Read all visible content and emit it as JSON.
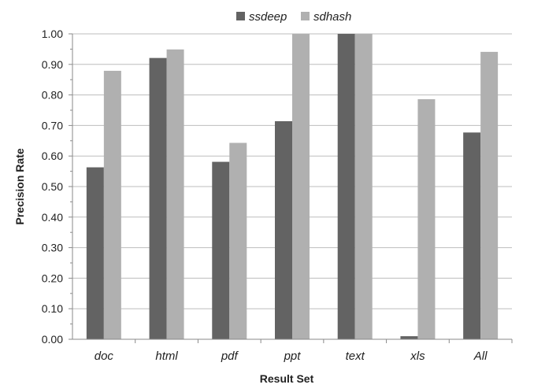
{
  "chart_data": {
    "type": "bar",
    "categories": [
      "doc",
      "html",
      "pdf",
      "ppt",
      "text",
      "xls",
      "All"
    ],
    "series": [
      {
        "name": "ssdeep",
        "values": [
          0.563,
          0.921,
          0.581,
          0.714,
          1.0,
          0.01,
          0.677
        ],
        "color": "#636363"
      },
      {
        "name": "sdhash",
        "values": [
          0.879,
          0.949,
          0.643,
          1.0,
          1.0,
          0.786,
          0.941
        ],
        "color": "#b0b0b0"
      }
    ],
    "xlabel": "Result Set",
    "ylabel": "Precision Rate",
    "ylim": [
      0,
      1
    ],
    "yticks": [
      "0.00",
      "0.10",
      "0.20",
      "0.30",
      "0.40",
      "0.50",
      "0.60",
      "0.70",
      "0.80",
      "0.90",
      "1.00"
    ],
    "grid": true,
    "legend": "top-center"
  }
}
